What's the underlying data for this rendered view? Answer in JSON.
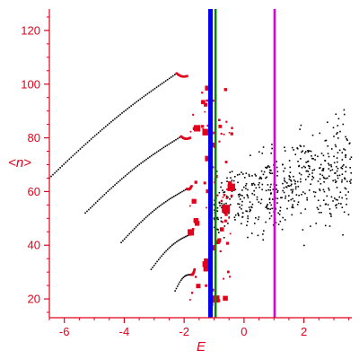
{
  "chart_data": {
    "type": "scatter",
    "xlabel": "E",
    "ylabel": "<n>",
    "xlim": [
      -6.5,
      3.6
    ],
    "ylim": [
      13,
      128
    ],
    "xticks": [
      -6,
      -4,
      -2,
      0,
      2
    ],
    "yticks": [
      20,
      40,
      60,
      80,
      100,
      120
    ],
    "grid": false,
    "colors": {
      "axis": "#e3001b",
      "scatter_black": "#000000",
      "scatter_red": "#e3001b",
      "line_blue": "#0000ee",
      "line_green": "#008800",
      "line_magenta": "#dd00dd"
    },
    "vertical_lines": [
      {
        "x": -1.12,
        "color": "#0000ee",
        "width": "thick"
      },
      {
        "x": -0.95,
        "color": "#008800",
        "width": "medium"
      },
      {
        "x": 1.02,
        "color": "#dd00dd",
        "width": "medium"
      }
    ],
    "curves": [
      {
        "x0": -6.5,
        "y0": 65,
        "x1": -2.25,
        "y1": 104,
        "tail_x": -1.9,
        "tail_y": 103,
        "count": 70
      },
      {
        "x0": -5.3,
        "y0": 52,
        "x1": -2.1,
        "y1": 80.5,
        "tail_x": -1.8,
        "tail_y": 80,
        "count": 55
      },
      {
        "x0": -4.1,
        "y0": 41,
        "x1": -1.9,
        "y1": 61,
        "tail_x": -1.75,
        "tail_y": 62,
        "count": 40
      },
      {
        "x0": -3.1,
        "y0": 31,
        "x1": -1.8,
        "y1": 44,
        "tail_x": -1.7,
        "tail_y": 46,
        "count": 26
      },
      {
        "x0": -2.3,
        "y0": 23,
        "x1": -1.75,
        "y1": 29,
        "tail_x": -1.65,
        "tail_y": 31,
        "count": 14
      }
    ],
    "black_cloud": {
      "x_range": [
        -1.0,
        3.6
      ],
      "y_center_left": 55,
      "y_center_right": 68,
      "y_spread_left": 10,
      "y_spread_right": 20,
      "count": 520,
      "seed": 7
    },
    "red_cloud": {
      "x_range": [
        -1.8,
        -0.4
      ],
      "y_range": [
        18,
        100
      ],
      "count": 90,
      "seed": 11
    }
  }
}
